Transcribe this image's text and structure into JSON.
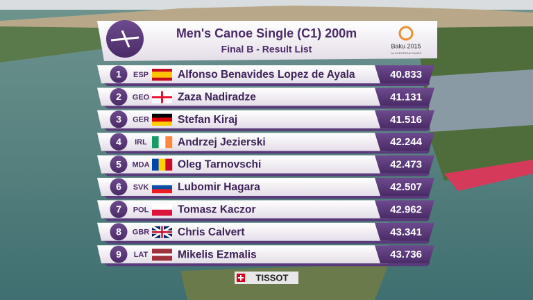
{
  "header": {
    "title": "Men's Canoe Single (C1) 200m",
    "subtitle": "Final B - Result List",
    "logo_title": "Baku 2015",
    "logo_subtitle": "1st EUROPEAN GAMES"
  },
  "table": {
    "rows": [
      {
        "rank": 1,
        "country": "ESP",
        "name": "Alfonso Benavides Lopez de Ayala",
        "time": "40.833"
      },
      {
        "rank": 2,
        "country": "GEO",
        "name": "Zaza Nadiradze",
        "time": "41.131"
      },
      {
        "rank": 3,
        "country": "GER",
        "name": "Stefan Kiraj",
        "time": "41.516"
      },
      {
        "rank": 4,
        "country": "IRL",
        "name": "Andrzej Jezierski",
        "time": "42.244"
      },
      {
        "rank": 5,
        "country": "MDA",
        "name": "Oleg Tarnovschi",
        "time": "42.473"
      },
      {
        "rank": 6,
        "country": "SVK",
        "name": "Lubomir Hagara",
        "time": "42.507"
      },
      {
        "rank": 7,
        "country": "POL",
        "name": "Tomasz Kaczor",
        "time": "42.962"
      },
      {
        "rank": 8,
        "country": "GBR",
        "name": "Chris Calvert",
        "time": "43.341"
      },
      {
        "rank": 9,
        "country": "LAT",
        "name": "Mikelis Ezmalis",
        "time": "43.736"
      }
    ]
  },
  "sponsor": "TISSOT"
}
